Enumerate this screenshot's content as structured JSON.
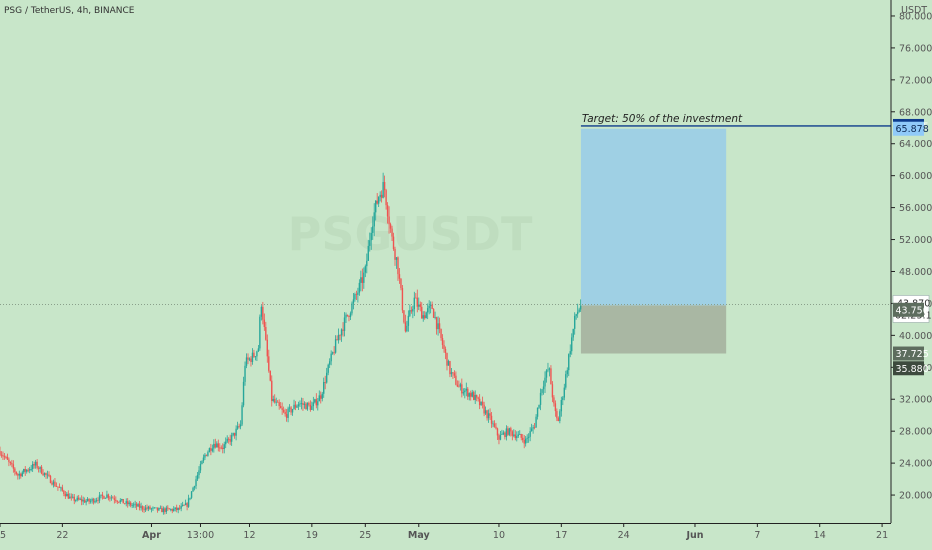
{
  "header": {
    "symbol": "PSG / TetherUS, 4h, BINANCE",
    "currency": "USDT"
  },
  "watermark": "PSGUSDT",
  "annotation": "Target: 50% of the investment",
  "colors": {
    "background": "#c8e6c9",
    "up": "#26a69a",
    "down": "#ef5350",
    "target_zone": "#9fd0e4",
    "stop_zone": "#a9b7a3",
    "target_line": "#0d3b8c",
    "current_price_badge": "#5d6d5e",
    "target_badge": "#0d3b8c",
    "target_badge_light": "#90caf9"
  },
  "price_badges": {
    "target": "66.225",
    "target_zone_top": "65.878",
    "last_price": "43.870",
    "countdown": "02:23:18",
    "entry": "43.750",
    "stop_1": "37.725",
    "stop_2": "35.880"
  },
  "chart_data": {
    "type": "candlestick",
    "title": "PSG / TetherUS, 4h, BINANCE",
    "ylabel": "USDT",
    "ylim": [
      16.5,
      82
    ],
    "y_ticks": [
      "80.000",
      "76.000",
      "72.000",
      "68.000",
      "64.000",
      "60.000",
      "56.000",
      "52.000",
      "48.000",
      "44.000",
      "40.000",
      "36.000",
      "32.000",
      "28.000",
      "24.000",
      "20.000"
    ],
    "x_ticks": [
      "15",
      "22",
      "Apr",
      "13:00",
      "12",
      "19",
      "25",
      "May",
      "10",
      "17",
      "24",
      "Jun",
      "7",
      "14",
      "21"
    ],
    "x_range_days": [
      0,
      100
    ],
    "x_tick_days": [
      0,
      7,
      17,
      22.5,
      28,
      35,
      41,
      47,
      56,
      63,
      70,
      78,
      85,
      92,
      99
    ],
    "price_path": [
      [
        0,
        25.5
      ],
      [
        2,
        22.5
      ],
      [
        4,
        23.8
      ],
      [
        6,
        21.5
      ],
      [
        8,
        19.5
      ],
      [
        10,
        19.2
      ],
      [
        12,
        20.0
      ],
      [
        14,
        19.0
      ],
      [
        16,
        18.4
      ],
      [
        18,
        18.1
      ],
      [
        20,
        18.2
      ],
      [
        21,
        18.8
      ],
      [
        22,
        22.0
      ],
      [
        23,
        25.0
      ],
      [
        24,
        26.5
      ],
      [
        25,
        26.0
      ],
      [
        26,
        27.2
      ],
      [
        27,
        28.8
      ],
      [
        27.5,
        36.5
      ],
      [
        28.5,
        37.5
      ],
      [
        29,
        38.5
      ],
      [
        29.3,
        44.5
      ],
      [
        30.5,
        32.0
      ],
      [
        32,
        30.0
      ],
      [
        33.5,
        31.5
      ],
      [
        35,
        31.0
      ],
      [
        36,
        32.5
      ],
      [
        37,
        36.5
      ],
      [
        38,
        40.0
      ],
      [
        39,
        42.5
      ],
      [
        40,
        45.0
      ],
      [
        41,
        48.0
      ],
      [
        41.7,
        54.0
      ],
      [
        42.5,
        57.5
      ],
      [
        43.1,
        58.8
      ],
      [
        44,
        52.0
      ],
      [
        44.6,
        49.0
      ],
      [
        45.5,
        40.5
      ],
      [
        46.5,
        44.5
      ],
      [
        47.5,
        42.5
      ],
      [
        48.5,
        43.5
      ],
      [
        49.5,
        39.5
      ],
      [
        50.5,
        35.5
      ],
      [
        51.5,
        33.5
      ],
      [
        53,
        32.5
      ],
      [
        54,
        31.2
      ],
      [
        55,
        29.5
      ],
      [
        56,
        27.2
      ],
      [
        57,
        28.0
      ],
      [
        58,
        27.5
      ],
      [
        59,
        26.8
      ],
      [
        60,
        28.8
      ],
      [
        60.8,
        33.5
      ],
      [
        61.6,
        36.0
      ],
      [
        62.2,
        30.8
      ],
      [
        62.6,
        29.0
      ],
      [
        63.3,
        33.5
      ],
      [
        64.0,
        38.5
      ],
      [
        64.6,
        42.5
      ],
      [
        65.2,
        43.87
      ]
    ],
    "long_position": {
      "start_day": 65.2,
      "end_day": 81.5,
      "entry": 43.75,
      "target": 65.878,
      "stop": 37.725
    },
    "target_line": 66.225,
    "last_price": 43.87
  }
}
